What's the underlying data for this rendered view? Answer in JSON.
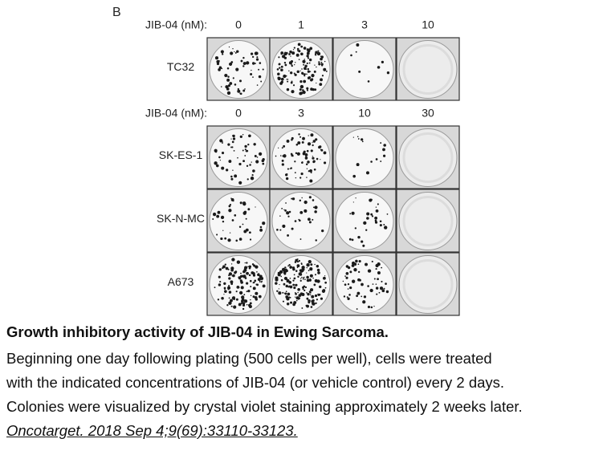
{
  "panel_label": "B",
  "blocks": [
    {
      "header_label": "JIB-04 (nM):",
      "concentrations": [
        "0",
        "1",
        "3",
        "10"
      ],
      "rows": [
        {
          "cell_line": "TC32"
        }
      ]
    },
    {
      "header_label": "JIB-04 (nM):",
      "concentrations": [
        "0",
        "3",
        "10",
        "30"
      ],
      "rows": [
        {
          "cell_line": "SK-ES-1"
        },
        {
          "cell_line": "SK-N-MC"
        },
        {
          "cell_line": "A673"
        }
      ]
    }
  ],
  "caption": {
    "title": "Growth inhibitory activity of JIB-04 in Ewing Sarcoma.",
    "lines": [
      "Beginning one day following plating (500 cells per well), cells were treated",
      "with the indicated concentrations of JIB-04 (or vehicle control) every 2 days.",
      "Colonies were visualized by crystal violet staining approximately 2 weeks later."
    ],
    "citation": "Oncotarget. 2018 Sep 4;9(69):33110-33123."
  }
}
